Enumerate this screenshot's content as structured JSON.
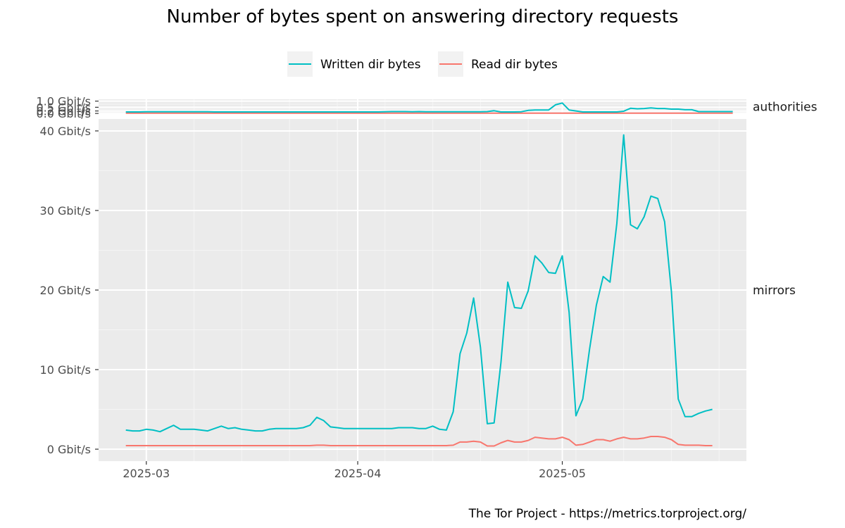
{
  "chart_data": {
    "type": "line",
    "title": "Number of bytes spent on answering directory requests",
    "caption": "The Tor Project - https://metrics.torproject.org/",
    "legend": {
      "placement": "top",
      "entries": [
        {
          "name": "Written dir bytes",
          "color": "#00BFC4"
        },
        {
          "name": "Read dir bytes",
          "color": "#F8766D"
        }
      ]
    },
    "x_ticks": [
      {
        "date": "2025-03-01",
        "label": "2025-03"
      },
      {
        "date": "2025-04-01",
        "label": "2025-04"
      },
      {
        "date": "2025-05-01",
        "label": "2025-05"
      }
    ],
    "x_range": [
      "2025-02-22",
      "2025-05-28"
    ],
    "x_start": "2025-02-26",
    "x_step_days": 1,
    "grid": true,
    "panels": [
      {
        "label": "authorities",
        "ylim": [
          -0.05,
          1.15
        ],
        "y_ticks": [
          {
            "value": 0.0,
            "label": "0.0 Gbit/s"
          },
          {
            "value": 0.2,
            "label": "0.2 Gbit/s"
          },
          {
            "value": 0.5,
            "label": "0.5 Gbit/s"
          },
          {
            "value": 1.0,
            "label": "1.0 Gbit/s"
          }
        ],
        "series": [
          {
            "name": "Written dir bytes",
            "color": "#00BFC4",
            "values": [
              0.12,
              0.12,
              0.12,
              0.13,
              0.13,
              0.13,
              0.13,
              0.13,
              0.13,
              0.13,
              0.13,
              0.13,
              0.13,
              0.12,
              0.12,
              0.12,
              0.12,
              0.12,
              0.12,
              0.12,
              0.12,
              0.12,
              0.12,
              0.12,
              0.12,
              0.12,
              0.12,
              0.12,
              0.12,
              0.12,
              0.12,
              0.12,
              0.12,
              0.12,
              0.12,
              0.12,
              0.12,
              0.12,
              0.13,
              0.15,
              0.15,
              0.15,
              0.14,
              0.15,
              0.14,
              0.14,
              0.14,
              0.14,
              0.13,
              0.13,
              0.13,
              0.13,
              0.14,
              0.15,
              0.22,
              0.12,
              0.12,
              0.12,
              0.14,
              0.25,
              0.28,
              0.28,
              0.28,
              0.7,
              0.85,
              0.28,
              0.2,
              0.12,
              0.12,
              0.12,
              0.12,
              0.12,
              0.12,
              0.18,
              0.42,
              0.38,
              0.4,
              0.45,
              0.4,
              0.4,
              0.35,
              0.35,
              0.3,
              0.3,
              0.15,
              0.15,
              0.15,
              0.15,
              0.15,
              0.15
            ]
          },
          {
            "name": "Read dir bytes",
            "color": "#F8766D",
            "values": [
              0.02,
              0.02,
              0.02,
              0.02,
              0.02,
              0.02,
              0.02,
              0.02,
              0.02,
              0.02,
              0.02,
              0.02,
              0.02,
              0.02,
              0.02,
              0.02,
              0.02,
              0.02,
              0.02,
              0.02,
              0.02,
              0.02,
              0.02,
              0.02,
              0.02,
              0.02,
              0.02,
              0.02,
              0.02,
              0.02,
              0.02,
              0.02,
              0.02,
              0.02,
              0.02,
              0.02,
              0.02,
              0.02,
              0.02,
              0.02,
              0.02,
              0.02,
              0.02,
              0.02,
              0.02,
              0.02,
              0.02,
              0.02,
              0.02,
              0.02,
              0.02,
              0.02,
              0.02,
              0.02,
              0.02,
              0.02,
              0.02,
              0.02,
              0.02,
              0.02,
              0.02,
              0.02,
              0.02,
              0.02,
              0.02,
              0.02,
              0.02,
              0.02,
              0.02,
              0.02,
              0.02,
              0.02,
              0.02,
              0.02,
              0.02,
              0.02,
              0.02,
              0.02,
              0.02,
              0.02,
              0.02,
              0.02,
              0.02,
              0.02,
              0.02,
              0.02,
              0.02,
              0.02,
              0.02,
              0.02
            ]
          }
        ]
      },
      {
        "label": "mirrors",
        "ylim": [
          -1.5,
          41.5
        ],
        "y_ticks": [
          {
            "value": 0,
            "label": "0 Gbit/s"
          },
          {
            "value": 10,
            "label": "10 Gbit/s"
          },
          {
            "value": 20,
            "label": "20 Gbit/s"
          },
          {
            "value": 30,
            "label": "30 Gbit/s"
          },
          {
            "value": 40,
            "label": "40 Gbit/s"
          }
        ],
        "series": [
          {
            "name": "Written dir bytes",
            "color": "#00BFC4",
            "values": [
              2.4,
              2.3,
              2.3,
              2.5,
              2.4,
              2.2,
              2.6,
              3.0,
              2.5,
              2.5,
              2.5,
              2.4,
              2.3,
              2.6,
              2.9,
              2.6,
              2.7,
              2.5,
              2.4,
              2.3,
              2.3,
              2.5,
              2.6,
              2.6,
              2.6,
              2.6,
              2.7,
              3.0,
              4.0,
              3.6,
              2.8,
              2.7,
              2.6,
              2.6,
              2.6,
              2.6,
              2.6,
              2.6,
              2.6,
              2.6,
              2.7,
              2.7,
              2.7,
              2.6,
              2.6,
              2.9,
              2.5,
              2.4,
              4.7,
              12.0,
              14.6,
              19.0,
              12.8,
              3.2,
              3.3,
              10.9,
              21.0,
              17.8,
              17.7,
              19.9,
              24.3,
              23.4,
              22.2,
              22.1,
              24.3,
              17.2,
              4.2,
              6.3,
              12.6,
              18.1,
              21.7,
              21.0,
              28.4,
              39.5,
              28.2,
              27.7,
              29.2,
              31.8,
              31.5,
              28.6,
              19.8,
              6.3,
              4.1,
              4.1,
              4.5,
              4.8,
              5.0
            ]
          },
          {
            "name": "Read dir bytes",
            "color": "#F8766D",
            "values": [
              0.45,
              0.45,
              0.45,
              0.45,
              0.45,
              0.45,
              0.45,
              0.45,
              0.45,
              0.45,
              0.45,
              0.45,
              0.45,
              0.45,
              0.45,
              0.45,
              0.45,
              0.45,
              0.45,
              0.45,
              0.45,
              0.45,
              0.45,
              0.45,
              0.45,
              0.45,
              0.45,
              0.45,
              0.5,
              0.5,
              0.45,
              0.45,
              0.45,
              0.45,
              0.45,
              0.45,
              0.45,
              0.45,
              0.45,
              0.45,
              0.45,
              0.45,
              0.45,
              0.45,
              0.45,
              0.45,
              0.45,
              0.45,
              0.5,
              0.9,
              0.9,
              1.0,
              0.9,
              0.4,
              0.4,
              0.8,
              1.1,
              0.9,
              0.9,
              1.1,
              1.5,
              1.4,
              1.3,
              1.3,
              1.5,
              1.2,
              0.5,
              0.6,
              0.9,
              1.2,
              1.2,
              1.0,
              1.3,
              1.5,
              1.3,
              1.3,
              1.4,
              1.6,
              1.6,
              1.5,
              1.2,
              0.6,
              0.5,
              0.5,
              0.5,
              0.45,
              0.45
            ]
          }
        ]
      }
    ]
  }
}
